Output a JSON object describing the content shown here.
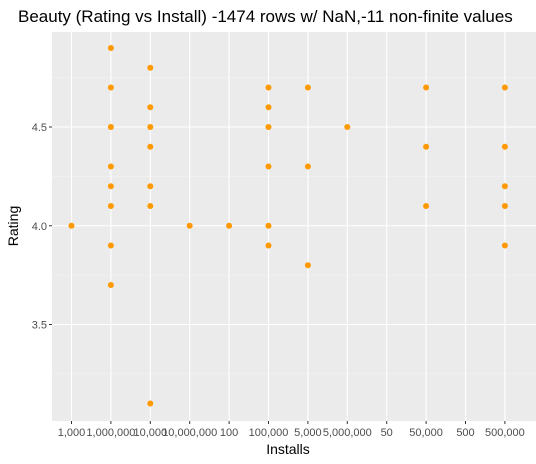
{
  "chart_data": {
    "type": "scatter",
    "title": "Beauty (Rating vs Install) -1474 rows w/ NaN,-11 non-finite values",
    "xlabel": "Installs",
    "ylabel": "Rating",
    "categories": [
      "1,000",
      "1,000,000",
      "10,000",
      "10,000,000",
      "100",
      "100,000",
      "5,000",
      "5,000,000",
      "50",
      "50,000",
      "500",
      "500,000"
    ],
    "y_ticks": [
      3.5,
      4.0,
      4.5
    ],
    "y_tick_labels": [
      "3.5",
      "4.0",
      "4.5"
    ],
    "ylim": [
      3.05,
      4.95
    ],
    "grid": true,
    "point_color": "#FF9900",
    "panel_color": "#EBEBEB",
    "points": [
      {
        "x": "1,000",
        "y": 4.0
      },
      {
        "x": "1,000,000",
        "y": 4.9
      },
      {
        "x": "1,000,000",
        "y": 4.7
      },
      {
        "x": "1,000,000",
        "y": 4.5
      },
      {
        "x": "1,000,000",
        "y": 4.3
      },
      {
        "x": "1,000,000",
        "y": 4.2
      },
      {
        "x": "1,000,000",
        "y": 4.1
      },
      {
        "x": "1,000,000",
        "y": 3.9
      },
      {
        "x": "1,000,000",
        "y": 3.7
      },
      {
        "x": "10,000",
        "y": 4.8
      },
      {
        "x": "10,000",
        "y": 4.6
      },
      {
        "x": "10,000",
        "y": 4.5
      },
      {
        "x": "10,000",
        "y": 4.4
      },
      {
        "x": "10,000",
        "y": 4.2
      },
      {
        "x": "10,000",
        "y": 4.1
      },
      {
        "x": "10,000",
        "y": 3.1
      },
      {
        "x": "10,000,000",
        "y": 4.0
      },
      {
        "x": "100",
        "y": 4.0
      },
      {
        "x": "100,000",
        "y": 4.7
      },
      {
        "x": "100,000",
        "y": 4.6
      },
      {
        "x": "100,000",
        "y": 4.5
      },
      {
        "x": "100,000",
        "y": 4.3
      },
      {
        "x": "100,000",
        "y": 4.0
      },
      {
        "x": "100,000",
        "y": 3.9
      },
      {
        "x": "5,000",
        "y": 4.7
      },
      {
        "x": "5,000",
        "y": 4.3
      },
      {
        "x": "5,000",
        "y": 3.8
      },
      {
        "x": "5,000,000",
        "y": 4.5
      },
      {
        "x": "50,000",
        "y": 4.7
      },
      {
        "x": "50,000",
        "y": 4.4
      },
      {
        "x": "50,000",
        "y": 4.1
      },
      {
        "x": "500,000",
        "y": 4.7
      },
      {
        "x": "500,000",
        "y": 4.4
      },
      {
        "x": "500,000",
        "y": 4.2
      },
      {
        "x": "500,000",
        "y": 4.1
      },
      {
        "x": "500,000",
        "y": 3.9
      }
    ]
  }
}
